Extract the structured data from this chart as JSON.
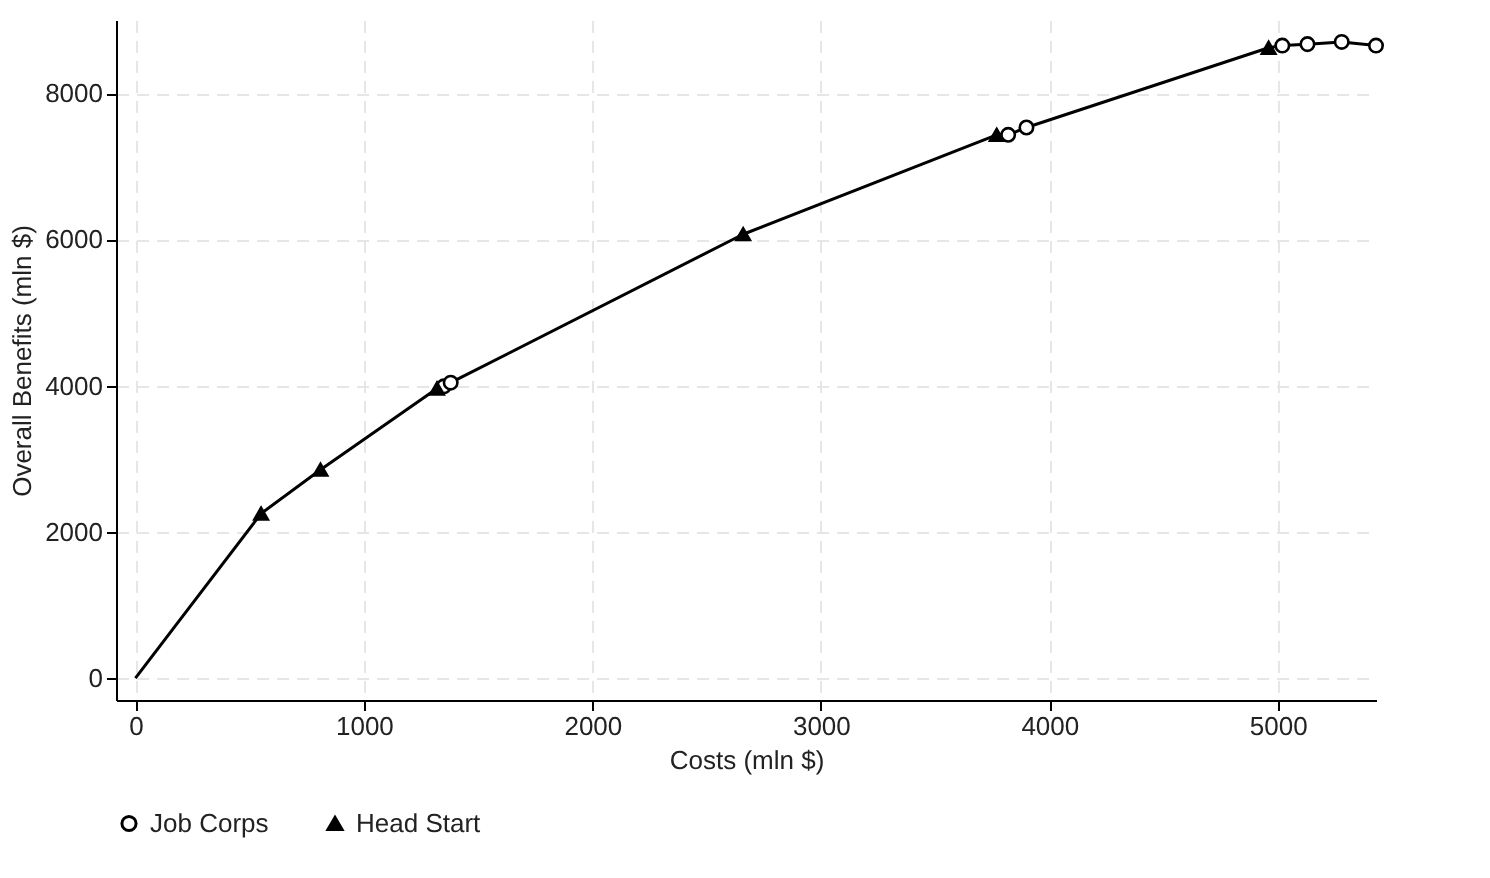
{
  "chart_data": {
    "type": "scatter",
    "xlabel": "Costs (mln $)",
    "ylabel": "Overall Benefits (mln $)",
    "xlim": [
      -85,
      5430
    ],
    "ylim": [
      -300,
      9000
    ],
    "xticks": [
      0,
      1000,
      2000,
      3000,
      4000,
      5000
    ],
    "yticks": [
      0,
      2000,
      4000,
      6000,
      8000
    ],
    "grid": true,
    "legend": "bottom",
    "series": [
      {
        "type": "line",
        "color": "#000000",
        "marker": "none",
        "line_style": "solid",
        "x": [
          0,
          550,
          810,
          1320,
          1350,
          1380,
          2660,
          3770,
          3820,
          3900,
          4960,
          5020,
          5130,
          5280,
          5430
        ],
        "values": [
          0,
          2250,
          2850,
          3960,
          3990,
          4040,
          6070,
          7430,
          7430,
          7530,
          8620,
          8650,
          8670,
          8700,
          8650
        ]
      },
      {
        "name": "Job Corps",
        "color": "#000000",
        "marker": "circle",
        "x": [
          1350,
          1380,
          3820,
          3900,
          5020,
          5130,
          5280,
          5430
        ],
        "values": [
          3990,
          4040,
          7430,
          7530,
          8650,
          8670,
          8700,
          8650
        ]
      },
      {
        "name": "Head Start",
        "color": "#000000",
        "marker": "triangle",
        "x": [
          550,
          810,
          1320,
          2660,
          3770,
          4960
        ],
        "values": [
          2250,
          2850,
          3960,
          6070,
          7430,
          8620
        ]
      }
    ]
  }
}
